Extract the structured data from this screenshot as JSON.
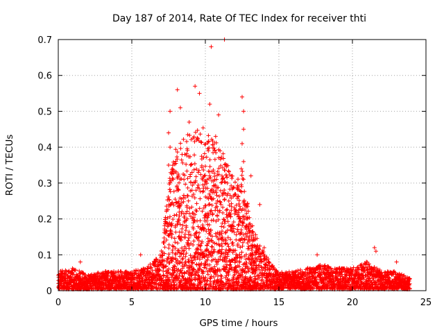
{
  "chart_data": {
    "type": "scatter",
    "title": "Day 187 of 2014, Rate Of TEC Index for receiver thti",
    "xlabel": "GPS time / hours",
    "ylabel": "ROTI / TECUs",
    "xlim": [
      0,
      25
    ],
    "ylim": [
      0,
      0.7
    ],
    "xticks": [
      "0",
      "5",
      "10",
      "15",
      "20",
      "25"
    ],
    "yticks": [
      "0",
      "0.1",
      "0.2",
      "0.3",
      "0.4",
      "0.5",
      "0.6",
      "0.7"
    ],
    "grid": true,
    "marker": "+",
    "color": "#ff0000",
    "series": [
      {
        "name": "ROTI",
        "notable_points": [
          [
            10.4,
            0.68
          ],
          [
            9.3,
            0.57
          ],
          [
            8.1,
            0.56
          ],
          [
            9.6,
            0.55
          ],
          [
            12.5,
            0.54
          ],
          [
            10.3,
            0.52
          ],
          [
            8.3,
            0.51
          ],
          [
            7.6,
            0.5
          ],
          [
            12.6,
            0.5
          ],
          [
            10.9,
            0.49
          ],
          [
            8.9,
            0.47
          ],
          [
            12.6,
            0.45
          ],
          [
            7.5,
            0.44
          ],
          [
            10.7,
            0.43
          ],
          [
            9.4,
            0.42
          ],
          [
            12.5,
            0.41
          ],
          [
            7.6,
            0.4
          ],
          [
            10.2,
            0.39
          ],
          [
            11.0,
            0.39
          ],
          [
            8.6,
            0.38
          ],
          [
            7.5,
            0.35
          ],
          [
            9.0,
            0.35
          ],
          [
            12.6,
            0.36
          ],
          [
            13.1,
            0.32
          ],
          [
            11.5,
            0.3
          ],
          [
            13.7,
            0.24
          ],
          [
            7.3,
            0.16
          ],
          [
            14.0,
            0.12
          ],
          [
            21.5,
            0.12
          ],
          [
            21.6,
            0.11
          ],
          [
            5.6,
            0.1
          ],
          [
            17.6,
            0.1
          ],
          [
            23.0,
            0.08
          ],
          [
            1.5,
            0.08
          ],
          [
            0.3,
            0.05
          ],
          [
            11.3,
            0.7
          ]
        ],
        "density_profile": {
          "description": "dense baseline ROTI points every few minutes from 0 to 23.9 h",
          "hours": [
            0,
            1,
            2,
            3,
            4,
            5,
            6,
            7,
            7.5,
            8,
            9,
            10,
            11,
            12,
            12.5,
            13,
            14,
            15,
            16,
            17,
            18,
            19,
            20,
            21,
            22,
            23,
            23.9
          ],
          "typical_max": [
            0.05,
            0.06,
            0.04,
            0.05,
            0.05,
            0.05,
            0.06,
            0.1,
            0.3,
            0.4,
            0.45,
            0.45,
            0.4,
            0.3,
            0.35,
            0.2,
            0.1,
            0.05,
            0.05,
            0.06,
            0.07,
            0.06,
            0.06,
            0.08,
            0.05,
            0.05,
            0.03
          ]
        }
      }
    ]
  }
}
